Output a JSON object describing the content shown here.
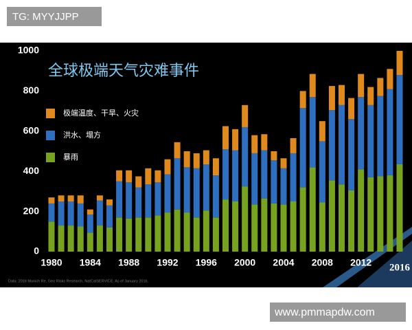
{
  "watermark_top": "TG: MYYJJPP",
  "watermark_bottom": "www.pmmapdw.com",
  "chart_data": {
    "type": "stacked_bar",
    "title": "全球极端天气灾难事件",
    "source": "Data: 2016 Munich Re, Geo Risks Research, NatCatSERVICE. As of January 2016.",
    "categories": [
      "1980",
      null,
      null,
      null,
      "1984",
      null,
      null,
      null,
      "1988",
      null,
      null,
      null,
      "1992",
      null,
      null,
      null,
      "1996",
      null,
      null,
      null,
      "2000",
      null,
      null,
      null,
      "2004",
      null,
      null,
      null,
      "2008",
      null,
      null,
      null,
      "2012",
      null,
      null,
      null,
      "2016"
    ],
    "series": [
      {
        "name": "暴雨",
        "color": "#77a320",
        "values": [
          150,
          130,
          130,
          125,
          95,
          130,
          120,
          170,
          165,
          170,
          170,
          180,
          195,
          210,
          195,
          170,
          205,
          170,
          260,
          250,
          325,
          235,
          265,
          240,
          235,
          250,
          320,
          420,
          245,
          355,
          335,
          305,
          410,
          370,
          375,
          380,
          435
        ]
      },
      {
        "name": "洪水、塌方",
        "color": "#2e6fc0",
        "values": [
          90,
          120,
          120,
          115,
          90,
          125,
          110,
          180,
          180,
          150,
          165,
          165,
          190,
          255,
          225,
          245,
          230,
          210,
          250,
          255,
          295,
          255,
          240,
          215,
          180,
          240,
          395,
          350,
          305,
          350,
          395,
          355,
          360,
          360,
          400,
          430,
          445
        ]
      },
      {
        "name": "极端温度、干旱、火灾",
        "color": "#e08a1e",
        "values": [
          30,
          30,
          30,
          40,
          25,
          25,
          30,
          55,
          60,
          55,
          80,
          60,
          75,
          80,
          80,
          75,
          70,
          85,
          115,
          105,
          110,
          90,
          80,
          45,
          50,
          75,
          85,
          115,
          100,
          120,
          100,
          105,
          115,
          90,
          90,
          100,
          120
        ]
      }
    ],
    "ylim": [
      0,
      1000
    ],
    "yticks": [
      0,
      200,
      400,
      600,
      800,
      1000
    ]
  }
}
